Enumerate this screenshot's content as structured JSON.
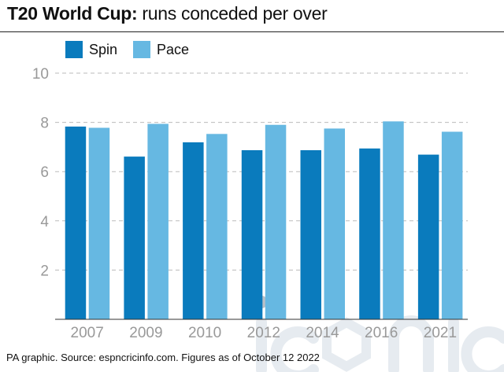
{
  "title_bold": "T20 World Cup:",
  "title_rest": " runs conceded per over",
  "footer": "PA graphic. Source: espncricinfo.com. Figures as of October 12 2022",
  "watermark": "iconic",
  "colors": {
    "spin": "#0a7bbd",
    "pace": "#66b8e2",
    "grid": "#bbbbbb",
    "tick": "#999999"
  },
  "chart_data": {
    "type": "bar",
    "title": "T20 World Cup: runs conceded per over",
    "categories": [
      "2007",
      "2009",
      "2010",
      "2012",
      "2014",
      "2016",
      "2021"
    ],
    "series": [
      {
        "name": "Spin",
        "values": [
          7.83,
          6.61,
          7.19,
          6.87,
          6.87,
          6.94,
          6.69
        ]
      },
      {
        "name": "Pace",
        "values": [
          7.78,
          7.94,
          7.53,
          7.9,
          7.75,
          8.04,
          7.62
        ]
      }
    ],
    "ylim": [
      0,
      10
    ],
    "yticks": [
      "2",
      "4",
      "6",
      "8",
      "10"
    ],
    "grid": true,
    "legend": "top-left"
  }
}
